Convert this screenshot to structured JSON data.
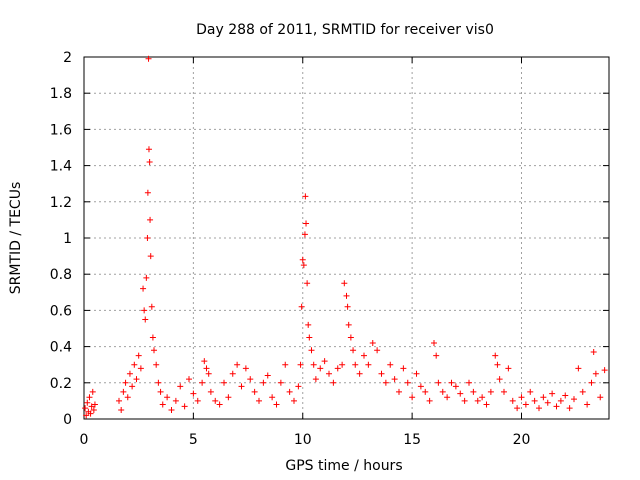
{
  "chart_data": {
    "type": "scatter",
    "title": "Day 288 of 2011, SRMTID for receiver vis0",
    "xlabel": "GPS time / hours",
    "ylabel": "SRMTID / TECUs",
    "xlim": [
      0,
      24
    ],
    "ylim": [
      0,
      2
    ],
    "xticks": [
      0,
      5,
      10,
      15,
      20
    ],
    "yticks": [
      0,
      0.2,
      0.4,
      0.6,
      0.8,
      1,
      1.2,
      1.4,
      1.6,
      1.8,
      2
    ],
    "xtick_labels": [
      "0",
      "5",
      "10",
      "15",
      "20"
    ],
    "ytick_labels": [
      "0",
      "0.2",
      "0.4",
      "0.6",
      "0.8",
      "1",
      "1.2",
      "1.4",
      "1.6",
      "1.8",
      "2"
    ],
    "grid": true,
    "marker": "plus",
    "color": "#ff0000",
    "series": [
      {
        "name": "SRMTID vis0",
        "x": [
          0.05,
          0.1,
          0.15,
          0.2,
          0.25,
          0.3,
          0.35,
          0.4,
          0.45,
          0.5,
          1.6,
          1.7,
          1.8,
          1.9,
          2.0,
          2.1,
          2.2,
          2.3,
          2.4,
          2.5,
          2.6,
          2.7,
          2.75,
          2.8,
          2.85,
          2.9,
          2.92,
          2.95,
          2.97,
          3.0,
          3.02,
          3.05,
          3.1,
          3.15,
          3.2,
          3.3,
          3.4,
          3.5,
          3.6,
          3.8,
          4.0,
          4.2,
          4.4,
          4.6,
          4.8,
          5.0,
          5.2,
          5.4,
          5.5,
          5.6,
          5.7,
          5.8,
          6.0,
          6.2,
          6.4,
          6.6,
          6.8,
          7.0,
          7.2,
          7.4,
          7.6,
          7.8,
          8.0,
          8.2,
          8.4,
          8.6,
          8.8,
          9.0,
          9.2,
          9.4,
          9.6,
          9.8,
          9.9,
          9.95,
          10.0,
          10.05,
          10.1,
          10.12,
          10.15,
          10.2,
          10.25,
          10.3,
          10.4,
          10.5,
          10.6,
          10.8,
          11.0,
          11.2,
          11.4,
          11.6,
          11.8,
          11.9,
          12.0,
          12.05,
          12.1,
          12.2,
          12.3,
          12.4,
          12.6,
          12.8,
          13.0,
          13.2,
          13.4,
          13.6,
          13.8,
          14.0,
          14.2,
          14.4,
          14.6,
          14.8,
          15.0,
          15.2,
          15.4,
          15.6,
          15.8,
          16.0,
          16.1,
          16.2,
          16.4,
          16.6,
          16.8,
          17.0,
          17.2,
          17.4,
          17.6,
          17.8,
          18.0,
          18.2,
          18.4,
          18.6,
          18.8,
          18.9,
          19.0,
          19.2,
          19.4,
          19.6,
          19.8,
          20.0,
          20.2,
          20.4,
          20.6,
          20.8,
          21.0,
          21.2,
          21.4,
          21.6,
          21.8,
          22.0,
          22.2,
          22.4,
          22.6,
          22.8,
          23.0,
          23.2,
          23.3,
          23.4,
          23.6,
          23.8
        ],
        "y": [
          0.06,
          0.02,
          0.09,
          0.04,
          0.12,
          0.03,
          0.07,
          0.15,
          0.05,
          0.08,
          0.1,
          0.05,
          0.15,
          0.2,
          0.12,
          0.25,
          0.18,
          0.3,
          0.22,
          0.35,
          0.28,
          0.72,
          0.6,
          0.55,
          0.78,
          1.0,
          1.25,
          1.99,
          1.49,
          1.42,
          1.1,
          0.9,
          0.62,
          0.45,
          0.38,
          0.3,
          0.2,
          0.15,
          0.08,
          0.12,
          0.05,
          0.1,
          0.18,
          0.07,
          0.22,
          0.14,
          0.1,
          0.2,
          0.32,
          0.28,
          0.25,
          0.15,
          0.1,
          0.08,
          0.2,
          0.12,
          0.25,
          0.3,
          0.18,
          0.28,
          0.22,
          0.15,
          0.1,
          0.2,
          0.24,
          0.12,
          0.08,
          0.2,
          0.3,
          0.15,
          0.1,
          0.18,
          0.3,
          0.62,
          0.88,
          0.85,
          1.02,
          1.23,
          1.08,
          0.75,
          0.52,
          0.45,
          0.38,
          0.3,
          0.22,
          0.28,
          0.32,
          0.25,
          0.2,
          0.28,
          0.3,
          0.75,
          0.68,
          0.62,
          0.52,
          0.45,
          0.38,
          0.3,
          0.25,
          0.35,
          0.3,
          0.42,
          0.38,
          0.25,
          0.2,
          0.3,
          0.22,
          0.15,
          0.28,
          0.2,
          0.12,
          0.25,
          0.18,
          0.15,
          0.1,
          0.42,
          0.35,
          0.2,
          0.15,
          0.12,
          0.2,
          0.18,
          0.14,
          0.1,
          0.2,
          0.15,
          0.1,
          0.12,
          0.08,
          0.15,
          0.35,
          0.3,
          0.22,
          0.15,
          0.28,
          0.1,
          0.06,
          0.12,
          0.08,
          0.15,
          0.1,
          0.06,
          0.12,
          0.09,
          0.14,
          0.07,
          0.1,
          0.13,
          0.06,
          0.11,
          0.28,
          0.15,
          0.08,
          0.2,
          0.37,
          0.25,
          0.12,
          0.27
        ]
      }
    ]
  }
}
